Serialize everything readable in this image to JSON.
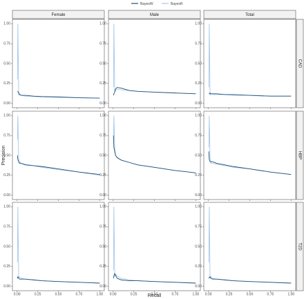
{
  "chart_data": {
    "type": "line",
    "x_label": "Recall",
    "y_label": "Precision",
    "columns": [
      "Female",
      "Male",
      "Total"
    ],
    "rows": [
      "CAD",
      "HBP",
      "T2D"
    ],
    "series": [
      {
        "name": "BayesW",
        "color": "#1f4e79"
      },
      {
        "name": "BayesR",
        "color": "#a6c8e8"
      }
    ],
    "xlim": [
      0,
      1
    ],
    "ylim": [
      0,
      1
    ],
    "xticks": [
      {
        "value": 0,
        "label": "0.00"
      },
      {
        "value": 0.25,
        "label": "0.25"
      },
      {
        "value": 0.5,
        "label": "0.50"
      },
      {
        "value": 0.75,
        "label": "0.75"
      },
      {
        "value": 1,
        "label": "1.00"
      }
    ],
    "yticks": [
      {
        "value": 0,
        "label": "0.00"
      },
      {
        "value": 0.25,
        "label": "0.25"
      },
      {
        "value": 0.5,
        "label": "0.50"
      },
      {
        "value": 0.75,
        "label": "0.75"
      },
      {
        "value": 1,
        "label": "1.00"
      }
    ],
    "panels": [
      {
        "x": [
          0.005,
          0.01,
          0.02,
          0.03,
          0.05,
          0.1,
          0.2,
          0.3,
          0.5,
          0.75,
          1.0
        ],
        "values": [
          [
            0.15,
            0.15,
            0.13,
            0.11,
            0.1,
            0.1,
            0.09,
            0.085,
            0.08,
            0.07,
            0.065
          ],
          [
            0.3,
            1.0,
            0.1,
            0.12,
            0.1,
            0.09,
            0.085,
            0.08,
            0.075,
            0.07,
            0.065
          ]
        ]
      },
      {
        "x": [
          0.005,
          0.01,
          0.02,
          0.03,
          0.05,
          0.1,
          0.2,
          0.3,
          0.5,
          0.75,
          1.0
        ],
        "values": [
          [
            0.1,
            0.12,
            0.14,
            0.18,
            0.2,
            0.19,
            0.16,
            0.15,
            0.14,
            0.13,
            0.12
          ],
          [
            0.2,
            1.0,
            0.15,
            0.16,
            0.18,
            0.17,
            0.16,
            0.15,
            0.14,
            0.13,
            0.12
          ]
        ]
      },
      {
        "x": [
          0.005,
          0.01,
          0.02,
          0.03,
          0.05,
          0.1,
          0.2,
          0.3,
          0.5,
          0.75,
          1.0
        ],
        "values": [
          [
            0.12,
            0.12,
            0.13,
            0.12,
            0.12,
            0.12,
            0.11,
            0.11,
            0.1,
            0.09,
            0.09
          ],
          [
            0.2,
            1.0,
            0.1,
            0.12,
            0.11,
            0.11,
            0.11,
            0.1,
            0.1,
            0.09,
            0.09
          ]
        ]
      },
      {
        "x": [
          0.005,
          0.01,
          0.02,
          0.03,
          0.05,
          0.1,
          0.2,
          0.3,
          0.5,
          0.75,
          1.0
        ],
        "values": [
          [
            0.5,
            0.45,
            0.42,
            0.4,
            0.4,
            0.38,
            0.37,
            0.36,
            0.33,
            0.29,
            0.26
          ],
          [
            0.7,
            1.0,
            0.45,
            0.42,
            0.4,
            0.39,
            0.37,
            0.35,
            0.32,
            0.29,
            0.25
          ]
        ]
      },
      {
        "x": [
          0.005,
          0.01,
          0.02,
          0.03,
          0.05,
          0.1,
          0.2,
          0.3,
          0.5,
          0.75,
          1.0
        ],
        "values": [
          [
            0.75,
            0.6,
            0.55,
            0.5,
            0.47,
            0.44,
            0.41,
            0.38,
            0.35,
            0.31,
            0.28
          ],
          [
            0.7,
            1.0,
            0.6,
            0.5,
            0.48,
            0.44,
            0.41,
            0.38,
            0.35,
            0.31,
            0.28
          ]
        ]
      },
      {
        "x": [
          0.005,
          0.01,
          0.02,
          0.03,
          0.05,
          0.1,
          0.2,
          0.3,
          0.5,
          0.75,
          1.0
        ],
        "values": [
          [
            0.55,
            0.45,
            0.42,
            0.42,
            0.42,
            0.4,
            0.38,
            0.36,
            0.33,
            0.29,
            0.26
          ],
          [
            0.6,
            1.0,
            0.48,
            0.4,
            0.4,
            0.39,
            0.37,
            0.35,
            0.33,
            0.29,
            0.26
          ]
        ]
      },
      {
        "x": [
          0.005,
          0.01,
          0.02,
          0.03,
          0.05,
          0.1,
          0.2,
          0.3,
          0.5,
          0.75,
          1.0
        ],
        "values": [
          [
            0.1,
            0.12,
            0.1,
            0.09,
            0.09,
            0.09,
            0.08,
            0.07,
            0.06,
            0.05,
            0.04
          ],
          [
            0.3,
            1.0,
            0.1,
            0.12,
            0.1,
            0.09,
            0.08,
            0.07,
            0.06,
            0.05,
            0.04
          ]
        ]
      },
      {
        "x": [
          0.005,
          0.01,
          0.02,
          0.03,
          0.05,
          0.1,
          0.2,
          0.3,
          0.5,
          0.75,
          1.0
        ],
        "values": [
          [
            0.1,
            0.13,
            0.16,
            0.14,
            0.1,
            0.08,
            0.07,
            0.07,
            0.06,
            0.05,
            0.04
          ],
          [
            0.2,
            1.0,
            0.12,
            0.15,
            0.13,
            0.1,
            0.08,
            0.07,
            0.06,
            0.05,
            0.04
          ]
        ]
      },
      {
        "x": [
          0.005,
          0.01,
          0.02,
          0.03,
          0.05,
          0.1,
          0.2,
          0.3,
          0.5,
          0.75,
          1.0
        ],
        "values": [
          [
            0.1,
            0.11,
            0.12,
            0.1,
            0.09,
            0.09,
            0.08,
            0.07,
            0.06,
            0.05,
            0.04
          ],
          [
            0.3,
            1.0,
            0.1,
            0.12,
            0.1,
            0.09,
            0.08,
            0.07,
            0.06,
            0.05,
            0.04
          ]
        ]
      }
    ]
  }
}
